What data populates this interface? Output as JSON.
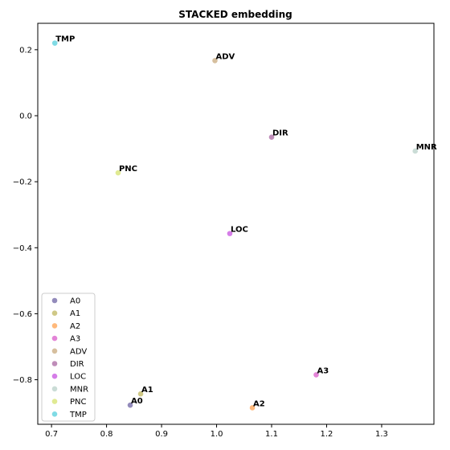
{
  "chart_data": {
    "type": "scatter",
    "title": "STACKED embedding",
    "xlabel": "",
    "ylabel": "",
    "xlim": [
      0.675,
      1.395
    ],
    "ylim": [
      -0.935,
      0.28
    ],
    "xticks": [
      0.7,
      0.8,
      0.9,
      1.0,
      1.1,
      1.2,
      1.3
    ],
    "xtick_labels": [
      "0.7",
      "0.8",
      "0.9",
      "1.0",
      "1.1",
      "1.2",
      "1.3"
    ],
    "yticks": [
      0.2,
      0.0,
      -0.2,
      -0.4,
      -0.6,
      -0.8
    ],
    "ytick_labels": [
      "0.2",
      "0.0",
      "−0.2",
      "−0.4",
      "−0.6",
      "−0.8"
    ],
    "grid": false,
    "legend_position": "lower-left",
    "series": [
      {
        "name": "A0",
        "color": "#3b2c83",
        "x": 0.843,
        "y": -0.877
      },
      {
        "name": "A1",
        "color": "#a89a22",
        "x": 0.862,
        "y": -0.843
      },
      {
        "name": "A2",
        "color": "#ff7f0e",
        "x": 1.065,
        "y": -0.885
      },
      {
        "name": "A3",
        "color": "#cc1fb6",
        "x": 1.181,
        "y": -0.785
      },
      {
        "name": "ADV",
        "color": "#b58a4e",
        "x": 0.997,
        "y": 0.167
      },
      {
        "name": "DIR",
        "color": "#8b2f7f",
        "x": 1.1,
        "y": -0.065
      },
      {
        "name": "LOC",
        "color": "#b212d6",
        "x": 1.024,
        "y": -0.357
      },
      {
        "name": "MNR",
        "color": "#9fbfb4",
        "x": 1.361,
        "y": -0.107
      },
      {
        "name": "PNC",
        "color": "#c6d93a",
        "x": 0.821,
        "y": -0.173
      },
      {
        "name": "TMP",
        "color": "#17becf",
        "x": 0.706,
        "y": 0.22
      }
    ]
  }
}
